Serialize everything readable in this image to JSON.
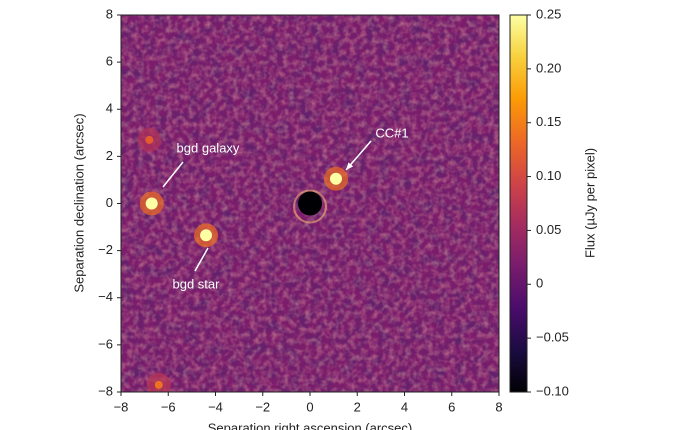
{
  "chart_data": {
    "type": "image",
    "xlabel": "Separation right ascension (arcsec)",
    "ylabel": "Separation declination (arcsec)",
    "xlim": [
      -8,
      8
    ],
    "ylim": [
      -8,
      8
    ],
    "xticks": [
      {
        "value": -8,
        "label": "−8"
      },
      {
        "value": -6,
        "label": "−6"
      },
      {
        "value": -4,
        "label": "−4"
      },
      {
        "value": -2,
        "label": "−2"
      },
      0,
      2,
      4,
      6,
      8
    ],
    "yticks": [
      {
        "value": -8,
        "label": "−8"
      },
      {
        "value": -6,
        "label": "−6"
      },
      {
        "value": -4,
        "label": "−4"
      },
      {
        "value": -2,
        "label": "−2"
      },
      0,
      2,
      4,
      6,
      8
    ],
    "colorbar": {
      "label": "Flux (µJy per pixel)",
      "lim": [
        -0.1,
        0.25
      ],
      "ticks": [
        {
          "value": -0.1,
          "label": "−0.10"
        },
        {
          "value": -0.05,
          "label": "−0.05"
        },
        0,
        0.05,
        {
          "value": 0.1,
          "label": "0.10"
        },
        0.15,
        {
          "value": 0.2,
          "label": "0.20"
        },
        0.25
      ],
      "colormap": [
        "#000004",
        "#1b0c41",
        "#4a0c6b",
        "#781c6d",
        "#a52c60",
        "#cf4446",
        "#ed6925",
        "#fb9b06",
        "#f7d13d",
        "#fcffa4"
      ]
    },
    "background_flux": 0.02,
    "sources": {
      "x": [
        -6.7,
        -4.4,
        1.1,
        0,
        -6.8,
        -6.4
      ],
      "y": [
        0,
        -1.35,
        1.05,
        0,
        2.7,
        -7.7
      ],
      "values": [
        0.25,
        0.25,
        0.25,
        -0.1,
        0.12,
        0.14
      ]
    },
    "annotations": [
      "bgd galaxy",
      "bgd star",
      "CC#1"
    ]
  }
}
